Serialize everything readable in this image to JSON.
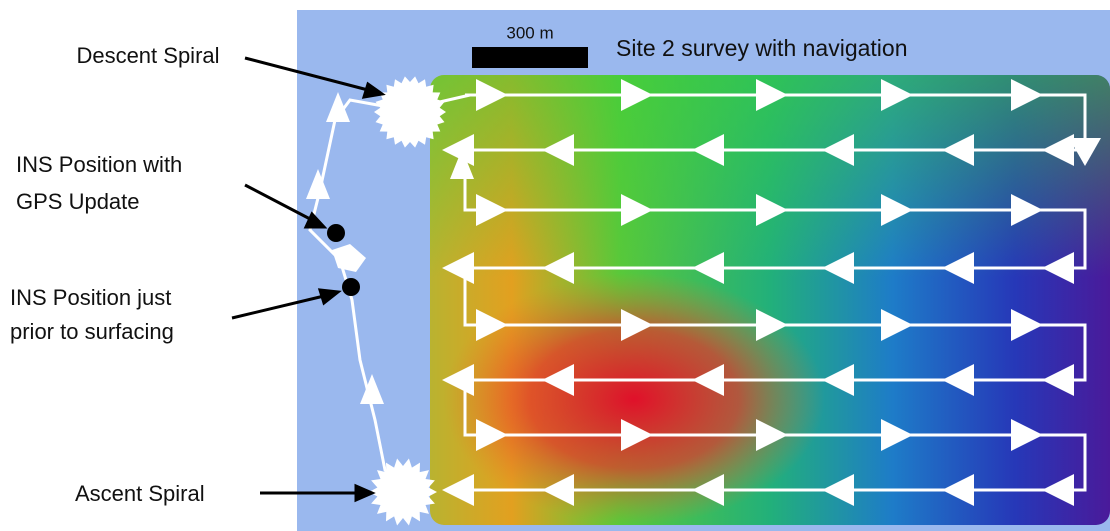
{
  "labels": {
    "descent": "Descent Spiral",
    "gps_update": [
      "INS Position with",
      "GPS Update"
    ],
    "surfacing": [
      "INS Position just",
      "prior to surfacing"
    ],
    "ascent": "Ascent Spiral"
  },
  "scale_bar": "300 m",
  "title": "Site 2 survey with navigation"
}
